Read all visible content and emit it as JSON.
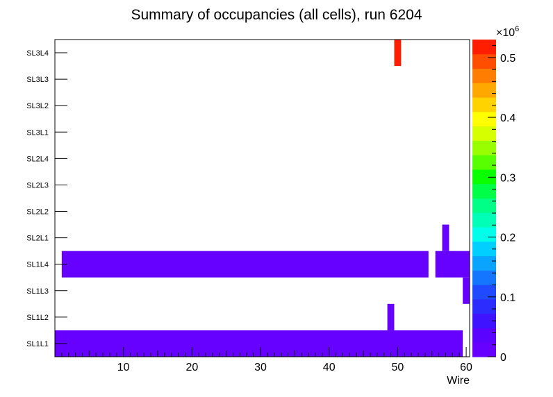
{
  "chart_data": {
    "type": "heatmap",
    "title": "Summary of occupancies (all cells),      run 6204",
    "xlabel": "Wire",
    "ylabel": "",
    "xlim": [
      0,
      60.5
    ],
    "x_ticks": [
      "10",
      "20",
      "30",
      "40",
      "50",
      "60"
    ],
    "x_tick_values": [
      10,
      20,
      30,
      40,
      50,
      60
    ],
    "y_categories": [
      "SL1L1",
      "SL1L2",
      "SL1L3",
      "SL1L4",
      "SL2L1",
      "SL2L2",
      "SL2L3",
      "SL2L4",
      "SL3L1",
      "SL3L2",
      "SL3L3",
      "SL3L4"
    ],
    "z_label_multiplier": "×10",
    "z_exponent": "6",
    "zlim": [
      0,
      0.53
    ],
    "z_ticks": [
      "0",
      "0.1",
      "0.2",
      "0.3",
      "0.4",
      "0.5"
    ],
    "z_tick_values": [
      0,
      0.1,
      0.2,
      0.3,
      0.4,
      0.5
    ],
    "palette": [
      "#6600ff",
      "#5a04ff",
      "#3f13ff",
      "#2c2cff",
      "#1f4aff",
      "#1475ff",
      "#0aa4ff",
      "#00cfff",
      "#00ffea",
      "#00ffb6",
      "#00ff86",
      "#00ff47",
      "#0aff00",
      "#57ff00",
      "#99ff00",
      "#d6ff00",
      "#ffff00",
      "#ffd300",
      "#ffa900",
      "#ff7d00",
      "#ff4e00",
      "#ff1e00"
    ],
    "cells": [
      {
        "layer": "SL1L1",
        "x_from": 0,
        "x_to": 59.5,
        "value": 0.01
      },
      {
        "layer": "SL1L2",
        "x_from": 48.5,
        "x_to": 49.5,
        "value": 0.01
      },
      {
        "layer": "SL1L3",
        "x_from": 59.5,
        "x_to": 60.5,
        "value": 0.01
      },
      {
        "layer": "SL1L4",
        "x_from": 1,
        "x_to": 54.5,
        "value": 0.01
      },
      {
        "layer": "SL1L4",
        "x_from": 55.5,
        "x_to": 60.5,
        "value": 0.01
      },
      {
        "layer": "SL2L1",
        "x_from": 56.5,
        "x_to": 57.5,
        "value": 0.01
      },
      {
        "layer": "SL3L4",
        "x_from": 49.5,
        "x_to": 50.5,
        "value": 0.53
      }
    ]
  }
}
